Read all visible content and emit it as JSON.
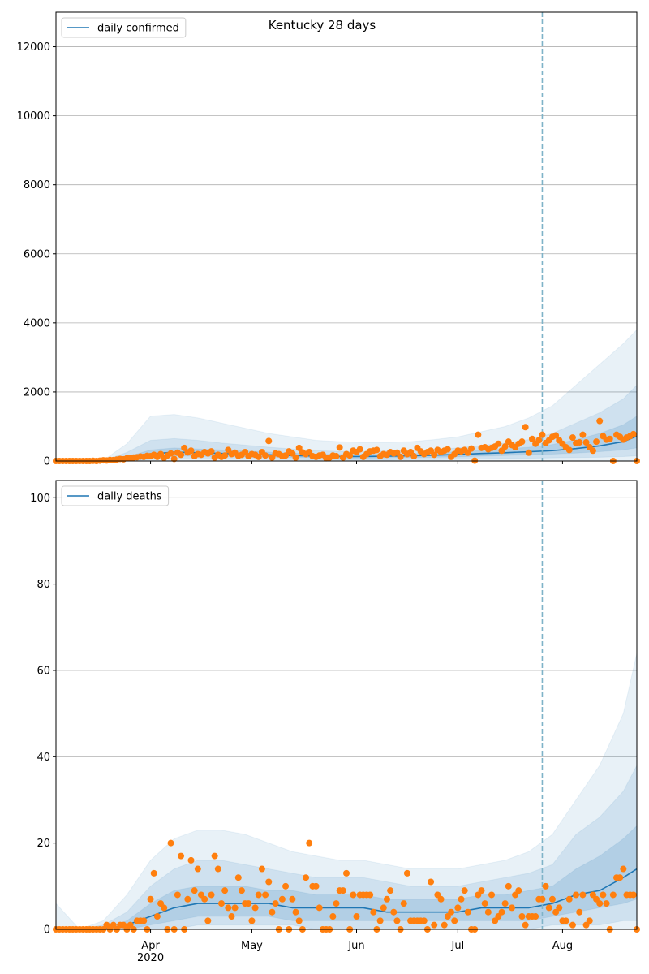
{
  "chart_data": [
    {
      "type": "line",
      "title": "Kentucky 28 days",
      "x": [
        0,
        1,
        2,
        3,
        4,
        5,
        6,
        7,
        8,
        9,
        10,
        11,
        12,
        13,
        14,
        15,
        16,
        17,
        18,
        19,
        20,
        21,
        22,
        23,
        24,
        25,
        26,
        27,
        28,
        29,
        30,
        31,
        32,
        33,
        34,
        35,
        36,
        37,
        38,
        39,
        40,
        41,
        42,
        43,
        44,
        45,
        46,
        47,
        48,
        49,
        50,
        51,
        52,
        53,
        54,
        55,
        56,
        57,
        58,
        59,
        60,
        61,
        62,
        63,
        64,
        65,
        66,
        67,
        68,
        69,
        70,
        71,
        72,
        73,
        74,
        75,
        76,
        77,
        78,
        79,
        80,
        81,
        82,
        83,
        84,
        85,
        86,
        87,
        88,
        89,
        90,
        91,
        92,
        93,
        94,
        95,
        96,
        97,
        98,
        99,
        100,
        101,
        102,
        103,
        104,
        105,
        106,
        107,
        108,
        109,
        110,
        111,
        112,
        113,
        114,
        115,
        116,
        117,
        118,
        119,
        120,
        121,
        122,
        123,
        124,
        125,
        126,
        127,
        128,
        129,
        130,
        131,
        132,
        133,
        134,
        135,
        136,
        137,
        138,
        139,
        140,
        141,
        142,
        143,
        144,
        145,
        146,
        147,
        148,
        149,
        150,
        151,
        152,
        153,
        154,
        155,
        156,
        157,
        158,
        159,
        160,
        161,
        162,
        163,
        164,
        165,
        166,
        167,
        168,
        169,
        170,
        171,
        172
      ],
      "xlim": [
        0,
        172
      ],
      "xticks": [
        28,
        58,
        89,
        119,
        150
      ],
      "ylim": [
        0,
        13000
      ],
      "yticks": [
        0,
        2000,
        4000,
        6000,
        8000,
        10000,
        12000
      ],
      "grid": true,
      "legend": "upper left",
      "vline": 144,
      "vline_color": "#7fb3c8",
      "series": [
        {
          "name": "daily confirmed",
          "color": "#1f77b4",
          "x": [
            0,
            7,
            14,
            21,
            28,
            35,
            42,
            49,
            56,
            63,
            70,
            77,
            84,
            91,
            98,
            105,
            112,
            119,
            126,
            133,
            140,
            147,
            154,
            161,
            168,
            172
          ],
          "values": [
            0,
            0,
            0,
            60,
            200,
            260,
            240,
            220,
            200,
            180,
            160,
            140,
            130,
            130,
            140,
            150,
            170,
            190,
            220,
            240,
            270,
            300,
            360,
            440,
            560,
            720
          ]
        }
      ],
      "bands": [
        {
          "color": "#1f77b4",
          "alpha": 0.1,
          "lower": [
            0,
            0,
            0,
            0,
            0,
            0,
            0,
            0,
            0,
            0,
            0,
            0,
            0,
            0,
            0,
            0,
            0,
            0,
            0,
            0,
            0,
            0,
            0,
            0,
            0,
            0
          ],
          "upper": [
            0,
            0,
            20,
            500,
            1300,
            1350,
            1250,
            1100,
            950,
            800,
            700,
            600,
            560,
            540,
            540,
            560,
            620,
            700,
            850,
            1000,
            1250,
            1600,
            2200,
            2800,
            3400,
            3800
          ]
        },
        {
          "color": "#1f77b4",
          "alpha": 0.12,
          "lower": [
            0,
            0,
            0,
            0,
            40,
            60,
            60,
            50,
            50,
            40,
            40,
            30,
            30,
            30,
            30,
            40,
            40,
            50,
            60,
            70,
            80,
            90,
            100,
            110,
            130,
            150
          ],
          "upper": [
            0,
            0,
            10,
            250,
            600,
            650,
            600,
            520,
            460,
            400,
            350,
            300,
            280,
            280,
            290,
            300,
            330,
            380,
            450,
            520,
            620,
            800,
            1100,
            1400,
            1800,
            2200
          ]
        },
        {
          "color": "#1f77b4",
          "alpha": 0.16,
          "lower": [
            0,
            0,
            0,
            20,
            110,
            150,
            140,
            130,
            120,
            110,
            100,
            90,
            80,
            80,
            90,
            100,
            110,
            120,
            140,
            160,
            180,
            200,
            230,
            270,
            320,
            380
          ],
          "upper": [
            0,
            0,
            5,
            120,
            320,
            380,
            350,
            320,
            290,
            260,
            230,
            200,
            190,
            190,
            200,
            210,
            240,
            270,
            310,
            350,
            400,
            480,
            620,
            800,
            1050,
            1300
          ]
        }
      ],
      "points": {
        "color": "#ff7f0e",
        "values": [
          0,
          0,
          0,
          0,
          0,
          0,
          0,
          0,
          0,
          0,
          0,
          5,
          0,
          10,
          20,
          15,
          30,
          25,
          40,
          60,
          50,
          80,
          90,
          100,
          110,
          130,
          120,
          150,
          140,
          180,
          120,
          200,
          90,
          160,
          220,
          60,
          240,
          180,
          380,
          250,
          300,
          140,
          200,
          180,
          260,
          220,
          280,
          100,
          180,
          120,
          160,
          320,
          200,
          240,
          150,
          180,
          260,
          140,
          200,
          180,
          120,
          260,
          160,
          580,
          100,
          220,
          200,
          140,
          160,
          280,
          220,
          100,
          380,
          250,
          200,
          260,
          140,
          120,
          160,
          180,
          80,
          100,
          160,
          140,
          390,
          100,
          200,
          160,
          300,
          260,
          340,
          120,
          200,
          280,
          300,
          320,
          140,
          200,
          180,
          260,
          220,
          240,
          120,
          300,
          200,
          260,
          140,
          380,
          280,
          200,
          260,
          300,
          180,
          320,
          260,
          300,
          340,
          120,
          200,
          300,
          280,
          320,
          240,
          360,
          10,
          760,
          380,
          400,
          340,
          380,
          420,
          500,
          300,
          420,
          560,
          460,
          400,
          500,
          560,
          980,
          240,
          640,
          500,
          600,
          760,
          520,
          600,
          700,
          740,
          600,
          500,
          400,
          320,
          680,
          520,
          540,
          760,
          540,
          400,
          300,
          560,
          1160,
          720,
          620,
          640,
          0,
          760,
          700,
          620,
          680,
          720,
          780,
          0
        ]
      }
    },
    {
      "type": "line",
      "x": [
        0,
        1,
        2,
        3,
        4,
        5,
        6,
        7,
        8,
        9,
        10,
        11,
        12,
        13,
        14,
        15,
        16,
        17,
        18,
        19,
        20,
        21,
        22,
        23,
        24,
        25,
        26,
        27,
        28,
        29,
        30,
        31,
        32,
        33,
        34,
        35,
        36,
        37,
        38,
        39,
        40,
        41,
        42,
        43,
        44,
        45,
        46,
        47,
        48,
        49,
        50,
        51,
        52,
        53,
        54,
        55,
        56,
        57,
        58,
        59,
        60,
        61,
        62,
        63,
        64,
        65,
        66,
        67,
        68,
        69,
        70,
        71,
        72,
        73,
        74,
        75,
        76,
        77,
        78,
        79,
        80,
        81,
        82,
        83,
        84,
        85,
        86,
        87,
        88,
        89,
        90,
        91,
        92,
        93,
        94,
        95,
        96,
        97,
        98,
        99,
        100,
        101,
        102,
        103,
        104,
        105,
        106,
        107,
        108,
        109,
        110,
        111,
        112,
        113,
        114,
        115,
        116,
        117,
        118,
        119,
        120,
        121,
        122,
        123,
        124,
        125,
        126,
        127,
        128,
        129,
        130,
        131,
        132,
        133,
        134,
        135,
        136,
        137,
        138,
        139,
        140,
        141,
        142,
        143,
        144,
        145,
        146,
        147,
        148,
        149,
        150,
        151,
        152,
        153,
        154,
        155,
        156,
        157,
        158,
        159,
        160,
        161,
        162,
        163,
        164,
        165,
        166,
        167,
        168,
        169,
        170,
        171,
        172
      ],
      "xlim": [
        0,
        172
      ],
      "xticks": [
        {
          "value": 28,
          "label": "Apr\n2020"
        },
        {
          "value": 58,
          "label": "May"
        },
        {
          "value": 89,
          "label": "Jun"
        },
        {
          "value": 119,
          "label": "Jul"
        },
        {
          "value": 150,
          "label": "Aug"
        }
      ],
      "ylim": [
        0,
        104
      ],
      "yticks": [
        0,
        20,
        40,
        60,
        80,
        100
      ],
      "grid": true,
      "legend": "upper left",
      "vline": 144,
      "vline_color": "#7fb3c8",
      "series": [
        {
          "name": "daily deaths",
          "color": "#1f77b4",
          "x": [
            0,
            7,
            14,
            21,
            28,
            35,
            42,
            49,
            56,
            63,
            70,
            77,
            84,
            91,
            98,
            105,
            112,
            119,
            126,
            133,
            140,
            147,
            154,
            161,
            168,
            172
          ],
          "values": [
            0,
            0,
            0,
            1,
            3,
            5,
            6,
            6,
            6,
            6,
            5,
            5,
            5,
            5,
            4,
            4,
            4,
            4,
            5,
            5,
            5,
            6,
            8,
            9,
            12,
            14
          ]
        }
      ],
      "bands": [
        {
          "color": "#1f77b4",
          "alpha": 0.1,
          "lower": [
            0,
            0,
            0,
            0,
            0,
            0,
            0,
            0,
            0,
            0,
            0,
            0,
            0,
            0,
            0,
            0,
            0,
            0,
            0,
            0,
            0,
            0,
            0,
            0,
            0,
            0
          ],
          "upper": [
            6,
            0,
            2,
            8,
            16,
            21,
            23,
            23,
            22,
            20,
            18,
            17,
            16,
            16,
            15,
            14,
            14,
            14,
            15,
            16,
            18,
            22,
            30,
            38,
            50,
            64
          ]
        },
        {
          "color": "#1f77b4",
          "alpha": 0.12,
          "lower": [
            0,
            0,
            0,
            0,
            0,
            0,
            1,
            1,
            1,
            1,
            1,
            0,
            0,
            0,
            0,
            0,
            0,
            0,
            0,
            0,
            0,
            1,
            1,
            1,
            2,
            2
          ],
          "upper": [
            0,
            0,
            1,
            4,
            10,
            14,
            16,
            16,
            15,
            14,
            13,
            12,
            12,
            12,
            11,
            10,
            10,
            10,
            11,
            12,
            13,
            15,
            22,
            26,
            32,
            38
          ]
        },
        {
          "color": "#1f77b4",
          "alpha": 0.16,
          "lower": [
            0,
            0,
            0,
            0,
            1,
            2,
            3,
            3,
            3,
            3,
            2,
            2,
            2,
            2,
            2,
            2,
            2,
            2,
            2,
            2,
            2,
            3,
            4,
            5,
            6,
            7
          ],
          "upper": [
            0,
            0,
            0,
            2,
            6,
            9,
            10,
            10,
            10,
            9,
            9,
            8,
            8,
            8,
            7,
            7,
            7,
            7,
            8,
            8,
            9,
            10,
            14,
            17,
            21,
            24
          ]
        }
      ],
      "points": {
        "color": "#ff7f0e",
        "values": [
          0,
          0,
          0,
          0,
          0,
          0,
          0,
          0,
          0,
          0,
          0,
          0,
          0,
          0,
          0,
          1,
          0,
          1,
          0,
          1,
          1,
          0,
          1,
          0,
          2,
          2,
          2,
          0,
          7,
          13,
          3,
          6,
          5,
          0,
          20,
          0,
          8,
          17,
          0,
          7,
          16,
          9,
          14,
          8,
          7,
          2,
          8,
          17,
          14,
          6,
          9,
          5,
          3,
          5,
          12,
          9,
          6,
          6,
          2,
          5,
          8,
          14,
          8,
          11,
          4,
          6,
          0,
          7,
          10,
          0,
          7,
          4,
          2,
          0,
          12,
          20,
          10,
          10,
          5,
          0,
          0,
          0,
          3,
          6,
          9,
          9,
          13,
          0,
          8,
          3,
          8,
          8,
          8,
          8,
          4,
          0,
          2,
          5,
          7,
          9,
          4,
          2,
          0,
          6,
          13,
          2,
          2,
          2,
          2,
          2,
          0,
          11,
          1,
          8,
          7,
          1,
          3,
          4,
          2,
          5,
          7,
          9,
          4,
          0,
          0,
          8,
          9,
          6,
          4,
          8,
          2,
          3,
          4,
          6,
          10,
          5,
          8,
          9,
          3,
          1,
          3,
          3,
          3,
          7,
          7,
          10,
          5,
          7,
          4,
          5,
          2,
          2,
          7,
          1,
          8,
          4,
          8,
          1,
          2,
          8,
          7,
          6,
          8,
          6,
          0,
          8,
          12,
          12,
          14,
          8,
          8,
          8,
          0
        ]
      }
    }
  ]
}
